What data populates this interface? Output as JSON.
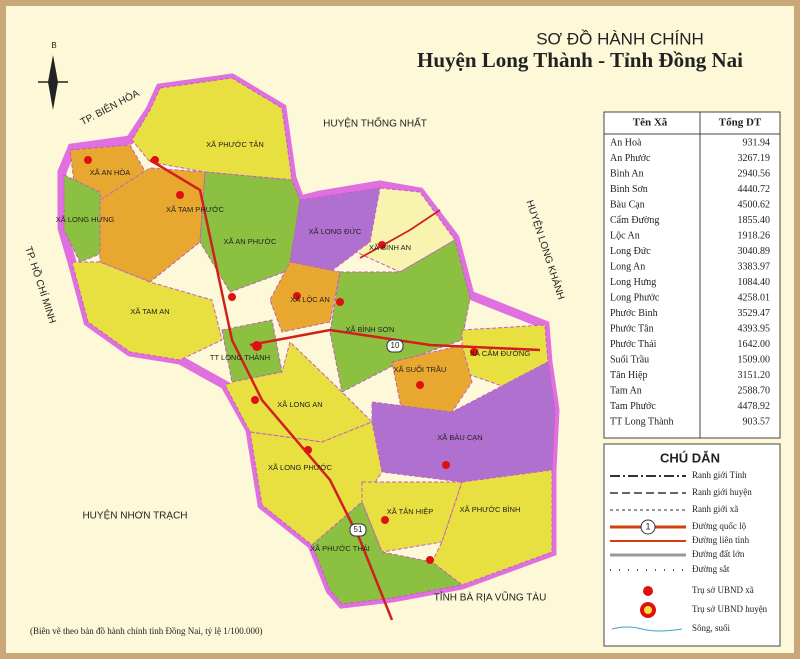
{
  "header": {
    "title": "SƠ ĐỒ HÀNH CHÍNH",
    "subtitle": "Huyện Long Thành - Tỉnh Đồng Nai"
  },
  "table": {
    "columns": [
      "Tên Xã",
      "Tổng DT"
    ],
    "rows": [
      [
        "An Hoà",
        "931.94"
      ],
      [
        "An Phước",
        "3267.19"
      ],
      [
        "Bình An",
        "2940.56"
      ],
      [
        "Bình Sơn",
        "4440.72"
      ],
      [
        "Bàu Cạn",
        "4500.62"
      ],
      [
        "Cẩm Đường",
        "1855.40"
      ],
      [
        "Lộc An",
        "1918.26"
      ],
      [
        "Long Đức",
        "3040.89"
      ],
      [
        "Long An",
        "3383.97"
      ],
      [
        "Long Hưng",
        "1084.40"
      ],
      [
        "Long Phước",
        "4258.01"
      ],
      [
        "Phước Bình",
        "3529.47"
      ],
      [
        "Phước Tân",
        "4393.95"
      ],
      [
        "Phước Thái",
        "1642.00"
      ],
      [
        "Suối Trầu",
        "1509.00"
      ],
      [
        "Tân Hiệp",
        "3151.20"
      ],
      [
        "Tam An",
        "2588.70"
      ],
      [
        "Tam Phước",
        "4478.92"
      ],
      [
        "TT Long Thành",
        "903.57"
      ]
    ]
  },
  "legend": {
    "title": "CHÚ DẪN",
    "shield": "1",
    "items": [
      "Ranh giới Tỉnh",
      "Ranh giới huyện",
      "Ranh giới xã",
      "Đường quốc lộ",
      "Đường liên tỉnh",
      "Đường đất lớn",
      "Đường sắt",
      "Trụ sở UBND xã",
      "Trụ sở UBND huyện",
      "Sông, suối"
    ]
  },
  "map": {
    "compass": "B",
    "neighbors": [
      "TP. BIÊN HÒA",
      "HUYỆN THỐNG NHẤT",
      "HUYỆN LONG KHÁNH",
      "TP. HỒ CHÍ MINH",
      "HUYỆN NHƠN TRẠCH",
      "TỈNH BÀ RỊA VŨNG TÀU"
    ],
    "communes": [
      "XÃ AN HÒA",
      "XÃ LONG HƯNG",
      "XÃ PHƯỚC TÂN",
      "XÃ TAM PHƯỚC",
      "XÃ AN PHƯỚC",
      "XÃ LONG ĐỨC",
      "XÃ BÌNH AN",
      "XÃ LỘC AN",
      "XÃ BÌNH SƠN",
      "XÃ CẨM ĐƯỜNG",
      "XÃ SUỐI TRẦU",
      "XÃ TAM AN",
      "TT LONG THÀNH",
      "XÃ LONG AN",
      "XÃ BÀU CẠN",
      "XÃ LONG PHƯỚC",
      "XÃ TÂN HIỆP",
      "XÃ PHƯỚC BÌNH",
      "XÃ PHƯỚC THÁI"
    ],
    "road_numbers": [
      "10",
      "51"
    ]
  },
  "footnote": "(Biên vẽ theo bản đồ hành chính tỉnh Đồng Nai, tỷ lệ 1/100.000)"
}
